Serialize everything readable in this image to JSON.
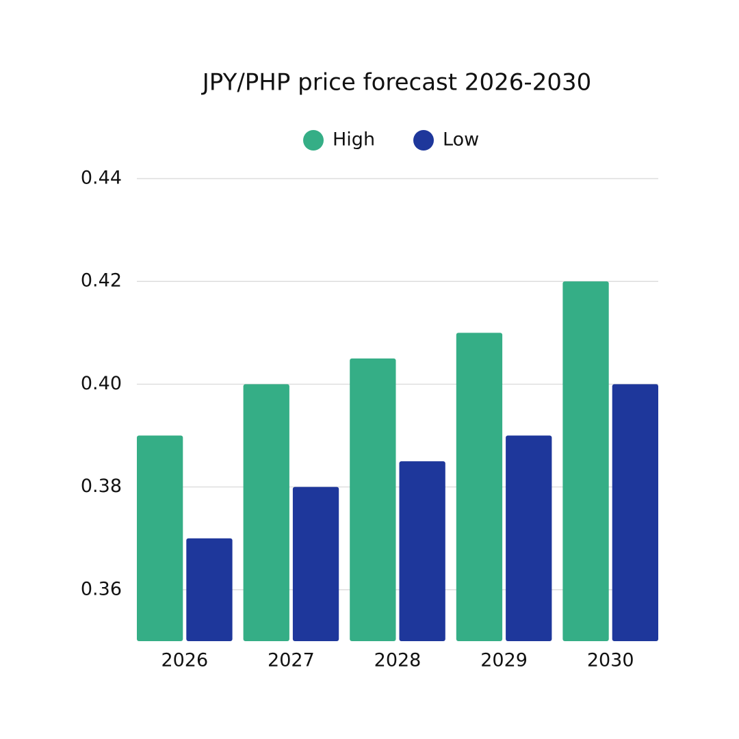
{
  "chart_data": {
    "type": "bar",
    "title": "JPY/PHP price forecast 2026-2030",
    "categories": [
      "2026",
      "2027",
      "2028",
      "2029",
      "2030"
    ],
    "series": [
      {
        "name": "High",
        "color": "#35ae86",
        "values": [
          0.39,
          0.4,
          0.405,
          0.41,
          0.42
        ]
      },
      {
        "name": "Low",
        "color": "#1e379b",
        "values": [
          0.37,
          0.38,
          0.385,
          0.39,
          0.4
        ]
      }
    ],
    "ylim": [
      0.35,
      0.44
    ],
    "yticks": [
      0.36,
      0.38,
      {
        "value": 0.4,
        "label": "0.40"
      },
      0.42,
      0.44
    ],
    "grid": true,
    "legend": "top"
  }
}
